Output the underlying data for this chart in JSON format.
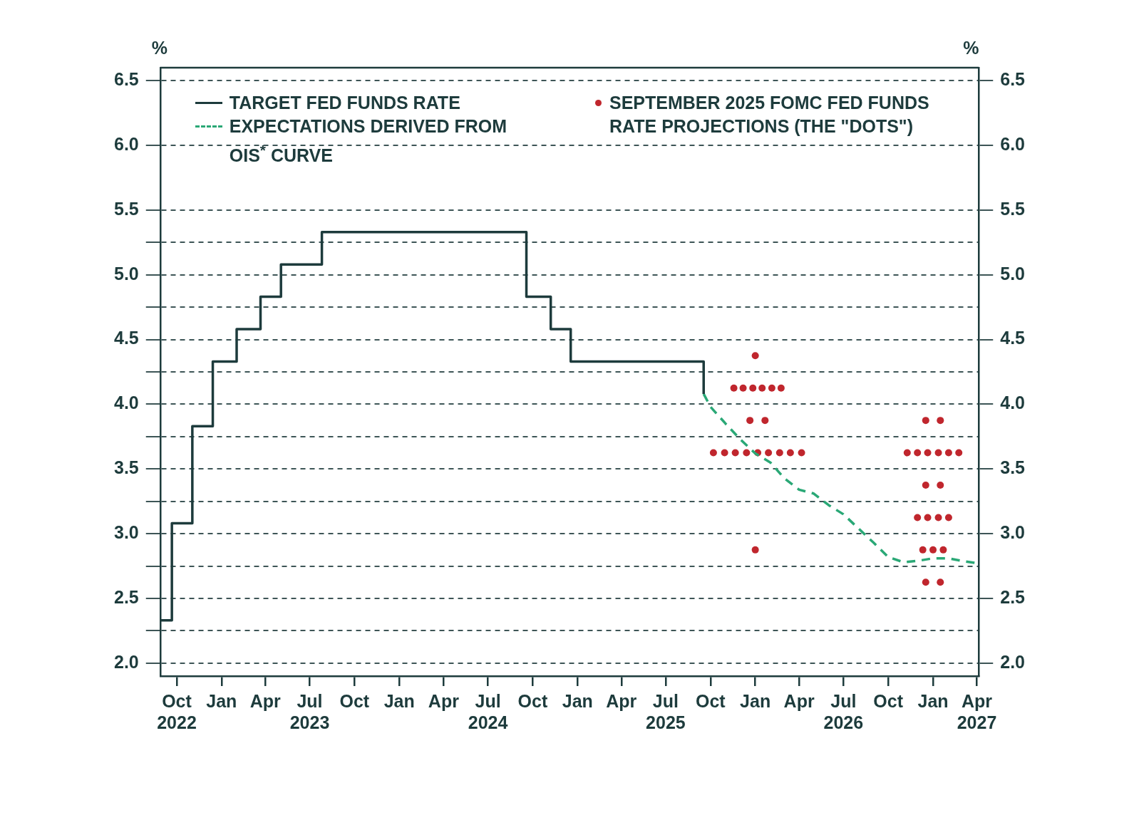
{
  "chart_data": {
    "type": "step",
    "xlim": [
      "2022-08-28",
      "2027-04-05"
    ],
    "xticks": [
      {
        "value": "2022-10-01",
        "label": "Oct\n2022"
      },
      {
        "value": "2023-01-01",
        "label": "Jan"
      },
      {
        "value": "2023-04-01",
        "label": "Apr"
      },
      {
        "value": "2023-07-01",
        "label": "Jul\n2023"
      },
      {
        "value": "2023-10-01",
        "label": "Oct"
      },
      {
        "value": "2024-01-01",
        "label": "Jan"
      },
      {
        "value": "2024-04-01",
        "label": "Apr"
      },
      {
        "value": "2024-07-01",
        "label": "Jul\n2024"
      },
      {
        "value": "2024-10-01",
        "label": "Oct"
      },
      {
        "value": "2025-01-01",
        "label": "Jan"
      },
      {
        "value": "2025-04-01",
        "label": "Apr"
      },
      {
        "value": "2025-07-01",
        "label": "Jul\n2025"
      },
      {
        "value": "2025-10-01",
        "label": "Oct"
      },
      {
        "value": "2026-01-01",
        "label": "Jan"
      },
      {
        "value": "2026-04-01",
        "label": "Apr"
      },
      {
        "value": "2026-07-01",
        "label": "Jul\n2026"
      },
      {
        "value": "2026-10-01",
        "label": "Oct"
      },
      {
        "value": "2027-01-01",
        "label": "Jan"
      },
      {
        "value": "2027-04-01",
        "label": "Apr\n2027"
      }
    ],
    "ylim": [
      1.9,
      6.6
    ],
    "yticks": [
      {
        "value": 2,
        "label": "2.0"
      },
      {
        "value": 2.25,
        "label": null
      },
      2.5,
      {
        "value": 2.75,
        "label": null
      },
      {
        "value": 3,
        "label": "3.0"
      },
      {
        "value": 3.25,
        "label": null
      },
      3.5,
      {
        "value": 3.75,
        "label": null
      },
      {
        "value": 4,
        "label": "4.0"
      },
      {
        "value": 4.25,
        "label": null
      },
      4.5,
      {
        "value": 4.75,
        "label": null
      },
      {
        "value": 5,
        "label": "5.0"
      },
      {
        "value": 5.25,
        "label": null
      },
      5.5,
      {
        "value": 6,
        "label": "6.0"
      },
      6.5
    ],
    "y2lim": [
      1.9,
      6.6
    ],
    "y2ticks": [
      {
        "value": 2,
        "label": "2.0"
      },
      2.5,
      {
        "value": 3,
        "label": "3.0"
      },
      3.5,
      {
        "value": 4,
        "label": "4.0"
      },
      4.5,
      {
        "value": 5,
        "label": "5.0"
      },
      5.5,
      {
        "value": 6,
        "label": "6.0"
      },
      6.5
    ],
    "ylabel": "%",
    "y2label": "%",
    "grid": "y",
    "legend": "top",
    "series": [
      {
        "name": "TARGET FED FUNDS RATE",
        "color": "#1d3b3c",
        "line_style": "solid",
        "marker": "none",
        "x": [
          "2022-08-28",
          "2022-09-21",
          "2022-11-02",
          "2022-12-14",
          "2023-02-01",
          "2023-03-22",
          "2023-05-03",
          "2023-07-26",
          "2024-09-18",
          "2024-11-07",
          "2024-12-18",
          "2025-09-17"
        ],
        "values": [
          2.33,
          3.08,
          3.83,
          4.33,
          4.58,
          4.83,
          5.08,
          5.33,
          4.83,
          4.58,
          4.33,
          4.08
        ]
      },
      {
        "name": "EXPECTATIONS DERIVED FROM OIS$^{*}$ CURVE",
        "type": "line",
        "color": "#2aa876",
        "line_style": "dashed",
        "marker": "none",
        "x": [
          "2025-09-17",
          "2025-10-01",
          "2025-11-01",
          "2025-12-01",
          "2026-01-01",
          "2026-02-01",
          "2026-03-01",
          "2026-04-01",
          "2026-05-01",
          "2026-06-01",
          "2026-07-01",
          "2026-08-01",
          "2026-09-01",
          "2026-10-01",
          "2026-11-01",
          "2026-12-01",
          "2027-01-01",
          "2027-02-01",
          "2027-03-01",
          "2027-04-05"
        ],
        "values": [
          4.08,
          3.98,
          3.85,
          3.73,
          3.62,
          3.55,
          3.43,
          3.34,
          3.31,
          3.22,
          3.15,
          3.04,
          2.93,
          2.82,
          2.78,
          2.79,
          2.81,
          2.81,
          2.79,
          2.77
        ]
      },
      {
        "name": "SEPTEMBER 2025 FOMC FED FUNDS RATE PROJECTIONS (THE \"DOTS\")",
        "type": "scatter",
        "color": "#c0262d",
        "marker": "circle",
        "x": [
          "2026-01-01",
          "2025-11-18",
          "2025-12-07",
          "2025-12-27",
          "2026-01-15",
          "2026-02-04",
          "2026-02-23",
          "2025-12-21",
          "2026-01-21",
          "2025-10-07",
          "2025-10-30",
          "2025-11-21",
          "2025-12-14",
          "2026-01-06",
          "2026-01-28",
          "2026-02-20",
          "2026-03-14",
          "2026-04-06",
          "2026-01-01",
          "2026-12-17",
          "2027-01-16",
          "2026-11-09",
          "2026-11-30",
          "2026-12-21",
          "2027-01-12",
          "2027-02-02",
          "2027-02-23",
          "2026-12-17",
          "2027-01-16",
          "2026-11-30",
          "2026-12-21",
          "2027-01-12",
          "2027-02-02",
          "2026-12-11",
          "2027-01-01",
          "2027-01-22",
          "2026-12-17",
          "2027-01-16"
        ],
        "values": [
          4.375,
          4.125,
          4.125,
          4.125,
          4.125,
          4.125,
          4.125,
          3.875,
          3.875,
          3.625,
          3.625,
          3.625,
          3.625,
          3.625,
          3.625,
          3.625,
          3.625,
          3.625,
          2.875,
          3.875,
          3.875,
          3.625,
          3.625,
          3.625,
          3.625,
          3.625,
          3.625,
          3.375,
          3.375,
          3.125,
          3.125,
          3.125,
          3.125,
          2.875,
          2.875,
          2.875,
          2.625,
          2.625
        ]
      }
    ]
  }
}
